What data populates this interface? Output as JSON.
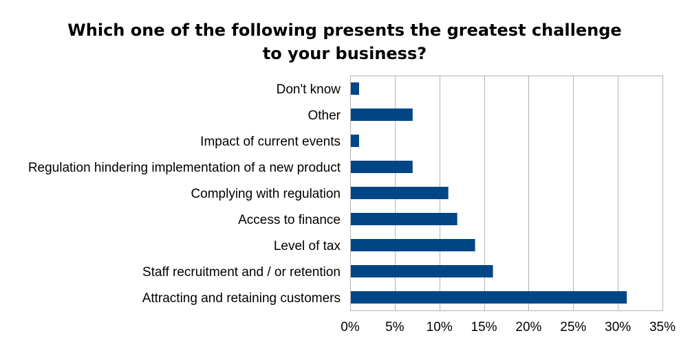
{
  "chart_data": {
    "type": "bar",
    "orientation": "horizontal",
    "title": [
      "Which one of the following presents the greatest challenge",
      "to your business?"
    ],
    "categories": [
      "Don't know",
      "Other",
      "Impact of current events",
      "Regulation hindering implementation of a new product",
      "Complying with regulation",
      "Access to finance",
      "Level of tax",
      "Staff recruitment and / or retention",
      "Attracting and retaining customers"
    ],
    "values": [
      1,
      7,
      1,
      7,
      11,
      12,
      14,
      16,
      31
    ],
    "xlim": [
      0,
      35
    ],
    "xticks": [
      0,
      5,
      10,
      15,
      20,
      25,
      30,
      35
    ],
    "xtick_labels": [
      "0%",
      "5%",
      "10%",
      "15%",
      "20%",
      "25%",
      "30%",
      "35%"
    ],
    "bar_color": "#004586",
    "grid": "vertical",
    "legend": "none"
  }
}
